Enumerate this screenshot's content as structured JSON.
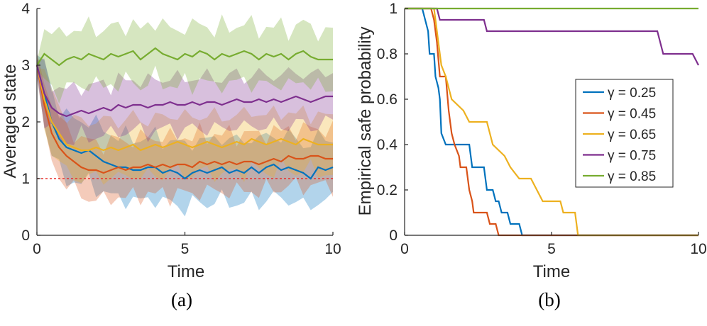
{
  "chart_data": [
    {
      "type": "line",
      "panel_caption": "(a)",
      "xlabel": "Time",
      "ylabel": "Averaged state",
      "xlim": [
        0,
        10
      ],
      "ylim": [
        0,
        4
      ],
      "xticks": [
        "0",
        "5",
        "10"
      ],
      "yticks": [
        "0",
        "1",
        "2",
        "3",
        "4"
      ],
      "reference_line": {
        "y": 1,
        "style": "dashed",
        "color": "#e8302d"
      },
      "x": [
        0,
        0.25,
        0.5,
        0.75,
        1,
        1.25,
        1.5,
        1.75,
        2,
        2.25,
        2.5,
        2.75,
        3,
        3.25,
        3.5,
        3.75,
        4,
        4.25,
        4.5,
        4.75,
        5,
        5.25,
        5.5,
        5.75,
        6,
        6.25,
        6.5,
        6.75,
        7,
        7.25,
        7.5,
        7.75,
        8,
        8.25,
        8.5,
        8.75,
        9,
        9.25,
        9.5,
        9.75,
        10
      ],
      "series": [
        {
          "name": "γ = 0.25",
          "color": "#0072bd",
          "band": 0.55,
          "values": [
            3.0,
            2.5,
            2.0,
            1.7,
            1.55,
            1.5,
            1.45,
            1.5,
            1.4,
            1.3,
            1.25,
            1.2,
            1.2,
            1.15,
            1.15,
            1.2,
            1.2,
            1.1,
            1.15,
            1.1,
            1.0,
            1.1,
            1.15,
            1.1,
            1.15,
            1.2,
            1.1,
            1.15,
            1.1,
            1.2,
            1.1,
            1.2,
            1.25,
            1.15,
            1.2,
            1.15,
            1.1,
            1.0,
            1.2,
            1.15,
            1.2
          ]
        },
        {
          "name": "γ = 0.45",
          "color": "#d95319",
          "band": 0.5,
          "values": [
            3.0,
            2.3,
            1.8,
            1.55,
            1.4,
            1.3,
            1.2,
            1.15,
            1.15,
            1.1,
            1.15,
            1.2,
            1.15,
            1.2,
            1.2,
            1.25,
            1.2,
            1.25,
            1.2,
            1.25,
            1.25,
            1.2,
            1.3,
            1.25,
            1.3,
            1.25,
            1.3,
            1.25,
            1.3,
            1.3,
            1.25,
            1.3,
            1.35,
            1.3,
            1.4,
            1.35,
            1.35,
            1.4,
            1.4,
            1.35,
            1.35
          ]
        },
        {
          "name": "γ = 0.65",
          "color": "#edb120",
          "band": 0.5,
          "values": [
            3.0,
            2.4,
            2.0,
            1.8,
            1.6,
            1.55,
            1.5,
            1.5,
            1.55,
            1.5,
            1.55,
            1.5,
            1.55,
            1.6,
            1.5,
            1.55,
            1.6,
            1.55,
            1.6,
            1.65,
            1.6,
            1.55,
            1.6,
            1.65,
            1.6,
            1.55,
            1.6,
            1.65,
            1.6,
            1.7,
            1.65,
            1.6,
            1.65,
            1.7,
            1.65,
            1.6,
            1.7,
            1.65,
            1.6,
            1.6,
            1.6
          ]
        },
        {
          "name": "γ = 0.75",
          "color": "#7e2f8e",
          "band": 0.45,
          "values": [
            3.0,
            2.5,
            2.25,
            2.15,
            2.1,
            2.15,
            2.2,
            2.15,
            2.2,
            2.25,
            2.2,
            2.3,
            2.25,
            2.3,
            2.3,
            2.25,
            2.3,
            2.3,
            2.35,
            2.3,
            2.3,
            2.35,
            2.3,
            2.35,
            2.35,
            2.3,
            2.35,
            2.4,
            2.35,
            2.35,
            2.4,
            2.35,
            2.4,
            2.35,
            2.4,
            2.45,
            2.4,
            2.35,
            2.4,
            2.45,
            2.45
          ]
        },
        {
          "name": "γ = 0.85",
          "color": "#77ac30",
          "band": 0.5,
          "values": [
            3.0,
            3.2,
            3.1,
            3.0,
            3.1,
            3.15,
            3.1,
            3.2,
            3.15,
            3.1,
            3.2,
            3.15,
            3.2,
            3.25,
            3.1,
            3.2,
            3.3,
            3.2,
            3.15,
            3.1,
            3.2,
            3.15,
            3.25,
            3.2,
            3.1,
            3.2,
            3.15,
            3.2,
            3.25,
            3.2,
            3.1,
            3.2,
            3.15,
            3.2,
            3.1,
            3.2,
            3.25,
            3.15,
            3.1,
            3.1,
            3.1
          ]
        }
      ]
    },
    {
      "type": "line",
      "panel_caption": "(b)",
      "xlabel": "Time",
      "ylabel": "Empirical safe probability",
      "xlim": [
        0,
        10
      ],
      "ylim": [
        0,
        1
      ],
      "xticks": [
        "0",
        "5",
        "10"
      ],
      "yticks": [
        "0",
        "0.2",
        "0.4",
        "0.6",
        "0.8",
        "1"
      ],
      "legend_position": "center-right",
      "series": [
        {
          "name": "γ = 0.25",
          "color": "#0072bd",
          "points": [
            [
              0,
              1
            ],
            [
              0.6,
              1
            ],
            [
              0.7,
              0.95
            ],
            [
              0.8,
              0.9
            ],
            [
              0.85,
              0.8
            ],
            [
              1.0,
              0.8
            ],
            [
              1.05,
              0.7
            ],
            [
              1.15,
              0.65
            ],
            [
              1.2,
              0.6
            ],
            [
              1.25,
              0.45
            ],
            [
              1.4,
              0.4
            ],
            [
              2.2,
              0.4
            ],
            [
              2.3,
              0.3
            ],
            [
              2.7,
              0.3
            ],
            [
              2.8,
              0.2
            ],
            [
              3.0,
              0.2
            ],
            [
              3.1,
              0.15
            ],
            [
              3.2,
              0.15
            ],
            [
              3.3,
              0.1
            ],
            [
              3.5,
              0.1
            ],
            [
              3.6,
              0.05
            ],
            [
              3.9,
              0.05
            ],
            [
              4.0,
              0
            ],
            [
              10,
              0
            ]
          ]
        },
        {
          "name": "γ = 0.45",
          "color": "#d95319",
          "points": [
            [
              0,
              1
            ],
            [
              0.9,
              1
            ],
            [
              1.0,
              0.95
            ],
            [
              1.1,
              0.85
            ],
            [
              1.2,
              0.7
            ],
            [
              1.4,
              0.7
            ],
            [
              1.5,
              0.55
            ],
            [
              1.6,
              0.45
            ],
            [
              1.7,
              0.4
            ],
            [
              1.85,
              0.35
            ],
            [
              1.9,
              0.3
            ],
            [
              2.1,
              0.3
            ],
            [
              2.2,
              0.2
            ],
            [
              2.3,
              0.15
            ],
            [
              2.35,
              0.1
            ],
            [
              2.8,
              0.1
            ],
            [
              2.9,
              0.05
            ],
            [
              3.1,
              0.05
            ],
            [
              3.2,
              0
            ],
            [
              10,
              0
            ]
          ]
        },
        {
          "name": "γ = 0.65",
          "color": "#edb120",
          "points": [
            [
              0,
              1
            ],
            [
              1.0,
              1
            ],
            [
              1.1,
              0.9
            ],
            [
              1.25,
              0.75
            ],
            [
              1.4,
              0.7
            ],
            [
              1.6,
              0.6
            ],
            [
              2.0,
              0.55
            ],
            [
              2.2,
              0.5
            ],
            [
              2.8,
              0.5
            ],
            [
              2.9,
              0.45
            ],
            [
              3.0,
              0.4
            ],
            [
              3.4,
              0.35
            ],
            [
              3.6,
              0.3
            ],
            [
              3.9,
              0.25
            ],
            [
              4.3,
              0.25
            ],
            [
              4.5,
              0.2
            ],
            [
              4.7,
              0.15
            ],
            [
              5.3,
              0.15
            ],
            [
              5.4,
              0.1
            ],
            [
              5.8,
              0.1
            ],
            [
              5.9,
              0
            ],
            [
              10,
              0
            ]
          ]
        },
        {
          "name": "γ = 0.75",
          "color": "#7e2f8e",
          "points": [
            [
              0,
              1
            ],
            [
              1.1,
              1
            ],
            [
              1.2,
              0.95
            ],
            [
              2.7,
              0.95
            ],
            [
              2.8,
              0.9
            ],
            [
              8.6,
              0.9
            ],
            [
              8.7,
              0.85
            ],
            [
              8.8,
              0.8
            ],
            [
              9.8,
              0.8
            ],
            [
              10,
              0.75
            ]
          ]
        },
        {
          "name": "γ = 0.85",
          "color": "#77ac30",
          "points": [
            [
              0,
              1
            ],
            [
              10,
              1
            ]
          ]
        }
      ]
    }
  ]
}
